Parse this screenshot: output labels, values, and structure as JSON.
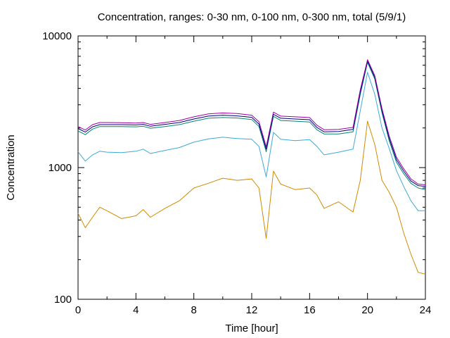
{
  "chart_data": {
    "type": "line",
    "title": "Concentration, ranges: 0-30 nm, 0-100 nm, 0-300 nm, total (5/9/1)",
    "xlabel": "Time [hour]",
    "ylabel": "Concentration",
    "xlim": [
      0,
      24
    ],
    "ylim": [
      100,
      10000
    ],
    "yscale": "log",
    "grid": false,
    "x_ticks": [
      0,
      4,
      8,
      12,
      16,
      20,
      24
    ],
    "x_tick_labels": [
      "0",
      "4",
      "8",
      "12",
      "16",
      "20",
      "24"
    ],
    "y_ticks": [
      100,
      1000,
      10000
    ],
    "y_tick_labels": [
      "100",
      "1000",
      "10000"
    ],
    "x": [
      0,
      0.5,
      1,
      1.5,
      2,
      3,
      4,
      4.5,
      5,
      6,
      7,
      8,
      9,
      10,
      11,
      12,
      12.5,
      13,
      13.5,
      14,
      15,
      16,
      16.5,
      17,
      18,
      19,
      19.5,
      20,
      20.5,
      21,
      21.5,
      22,
      22.5,
      23,
      23.5,
      24
    ],
    "series": [
      {
        "color": "#d18a00",
        "values": [
          450,
          350,
          420,
          500,
          470,
          410,
          430,
          480,
          420,
          490,
          560,
          700,
          760,
          830,
          800,
          820,
          700,
          290,
          940,
          750,
          680,
          700,
          620,
          490,
          550,
          460,
          800,
          2250,
          1500,
          800,
          650,
          500,
          320,
          220,
          160,
          155
        ]
      },
      {
        "color": "#3ea9d8",
        "values": [
          1320,
          1120,
          1250,
          1330,
          1310,
          1300,
          1330,
          1380,
          1280,
          1350,
          1420,
          1560,
          1650,
          1700,
          1660,
          1640,
          1450,
          850,
          1850,
          1640,
          1600,
          1630,
          1450,
          1250,
          1310,
          1380,
          2700,
          5300,
          3600,
          2000,
          1400,
          950,
          720,
          560,
          470,
          470
        ]
      },
      {
        "color": "#00857a",
        "values": [
          1900,
          1780,
          1960,
          2050,
          2050,
          2050,
          2040,
          2060,
          1990,
          2050,
          2120,
          2250,
          2370,
          2400,
          2380,
          2320,
          2050,
          1320,
          2450,
          2280,
          2250,
          2220,
          1940,
          1800,
          1800,
          1870,
          3600,
          6300,
          4700,
          2600,
          1600,
          1100,
          900,
          760,
          700,
          680
        ]
      },
      {
        "color": "#000080",
        "values": [
          1980,
          1860,
          2040,
          2120,
          2120,
          2120,
          2110,
          2130,
          2060,
          2130,
          2200,
          2340,
          2460,
          2500,
          2470,
          2410,
          2140,
          1380,
          2540,
          2370,
          2340,
          2310,
          2020,
          1870,
          1880,
          1950,
          3750,
          6450,
          4850,
          2700,
          1670,
          1150,
          940,
          790,
          730,
          720
        ]
      },
      {
        "color": "#a000a0",
        "values": [
          2050,
          1930,
          2120,
          2200,
          2200,
          2190,
          2180,
          2200,
          2130,
          2200,
          2280,
          2430,
          2560,
          2600,
          2570,
          2500,
          2230,
          1440,
          2640,
          2460,
          2430,
          2400,
          2100,
          1940,
          1950,
          2020,
          3900,
          6600,
          5000,
          2800,
          1740,
          1200,
          980,
          820,
          750,
          740
        ]
      }
    ]
  }
}
